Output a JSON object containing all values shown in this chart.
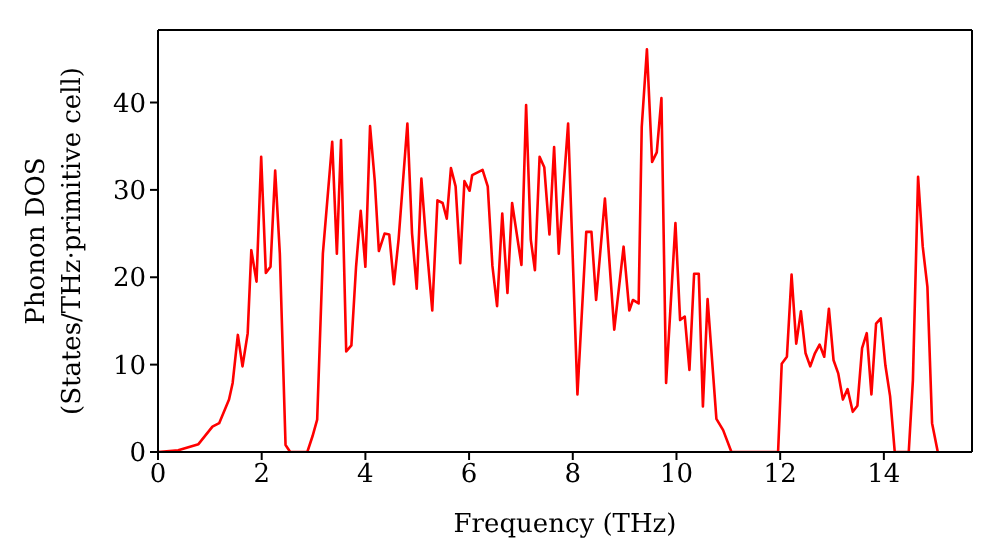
{
  "chart_data": {
    "type": "line",
    "xlabel": "Frequency (THz)",
    "ylabel": "Phonon DOS\n(States/THz·primitive cell)",
    "xlim": [
      0,
      15.7
    ],
    "ylim": [
      0,
      48.3
    ],
    "xticks": [
      0,
      2,
      4,
      6,
      8,
      10,
      12,
      14
    ],
    "yticks": [
      0,
      10,
      20,
      30,
      40
    ],
    "marker": "none",
    "line_style": "solid",
    "series": [
      {
        "color": "#ff0000",
        "x": [
          0,
          0.39,
          0.78,
          1.05,
          1.18,
          1.37,
          1.44,
          1.54,
          1.63,
          1.73,
          1.8,
          1.9,
          1.99,
          2.08,
          2.17,
          2.26,
          2.35,
          2.46,
          2.55,
          2.88,
          2.98,
          3.07,
          3.18,
          3.36,
          3.45,
          3.53,
          3.63,
          3.73,
          3.82,
          3.91,
          4.0,
          4.09,
          4.18,
          4.26,
          4.37,
          4.46,
          4.55,
          4.64,
          4.81,
          4.9,
          4.99,
          5.08,
          5.16,
          5.29,
          5.39,
          5.49,
          5.57,
          5.65,
          5.74,
          5.83,
          5.91,
          6.01,
          6.06,
          6.26,
          6.36,
          6.45,
          6.54,
          6.64,
          6.74,
          6.83,
          7.01,
          7.1,
          7.19,
          7.27,
          7.36,
          7.45,
          7.55,
          7.64,
          7.73,
          7.91,
          8.09,
          8.26,
          8.36,
          8.45,
          8.62,
          8.8,
          8.98,
          9.09,
          9.16,
          9.27,
          9.33,
          9.43,
          9.53,
          9.62,
          9.71,
          9.8,
          9.98,
          10.07,
          10.16,
          10.25,
          10.34,
          10.43,
          10.51,
          10.6,
          10.77,
          10.9,
          11.06,
          11.96,
          12.03,
          12.13,
          12.22,
          12.31,
          12.4,
          12.49,
          12.58,
          12.67,
          12.76,
          12.85,
          12.94,
          13.03,
          13.12,
          13.21,
          13.3,
          13.4,
          13.49,
          13.58,
          13.67,
          13.76,
          13.85,
          13.94,
          14.03,
          14.12,
          14.21,
          14.48,
          14.56,
          14.66,
          14.75,
          14.84,
          14.93,
          15.04
        ],
        "values": [
          0,
          0.2,
          0.9,
          2.9,
          3.3,
          6,
          7.9,
          13.4,
          9.8,
          13.6,
          23.1,
          19.5,
          33.8,
          20.5,
          21.2,
          32.2,
          22.7,
          0.8,
          0,
          0,
          1.8,
          3.7,
          22.7,
          35.5,
          22.7,
          35.7,
          11.5,
          12.2,
          21.2,
          27.6,
          21.2,
          37.3,
          31.1,
          23,
          25,
          24.9,
          19.2,
          24.3,
          37.6,
          25,
          18.7,
          31.3,
          25,
          16.2,
          28.8,
          28.5,
          26.7,
          32.5,
          30.4,
          21.6,
          31,
          29.9,
          31.7,
          32.3,
          30.4,
          21.3,
          16.7,
          27.3,
          18.2,
          28.5,
          21.4,
          39.7,
          24.3,
          20.8,
          33.8,
          32.6,
          24.9,
          34.9,
          22.7,
          37.6,
          6.6,
          25.2,
          25.2,
          17.4,
          29,
          14,
          23.5,
          16.2,
          17.4,
          17,
          37.2,
          46.1,
          33.2,
          34.3,
          40.5,
          7.9,
          26.2,
          15.1,
          15.5,
          9.4,
          20.4,
          20.4,
          5.2,
          17.5,
          3.8,
          2.5,
          0,
          0,
          10.1,
          10.9,
          20.3,
          12.4,
          16.1,
          11.3,
          9.8,
          11.3,
          12.3,
          10.9,
          16.4,
          10.5,
          9,
          6,
          7.2,
          4.6,
          5.3,
          11.9,
          13.6,
          6.6,
          14.7,
          15.3,
          9.9,
          6.4,
          0,
          0,
          8.2,
          31.5,
          23.5,
          18.9,
          3.3,
          0
        ]
      }
    ]
  }
}
